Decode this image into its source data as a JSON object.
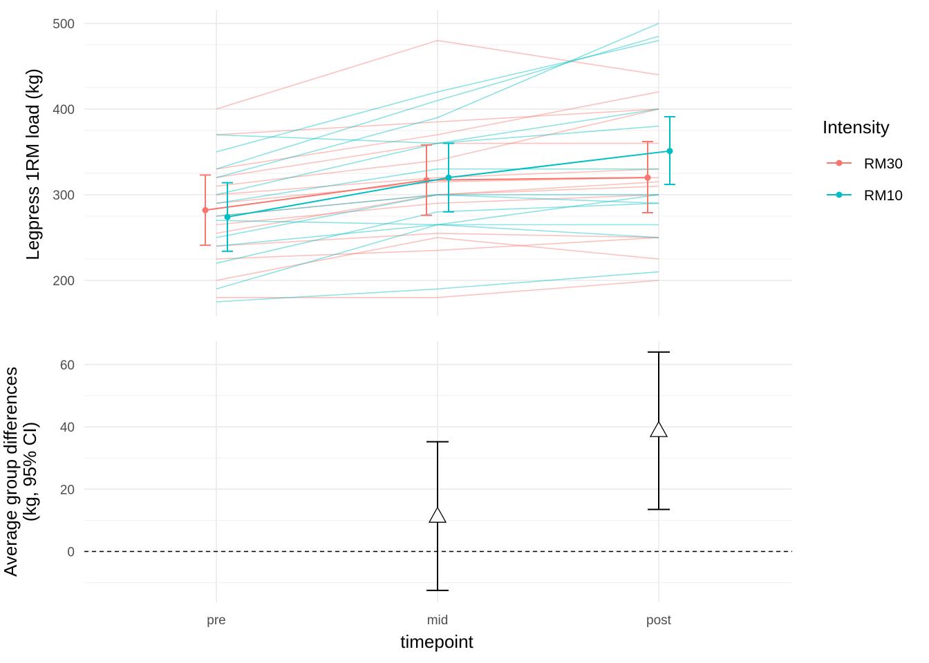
{
  "chart_data": [
    {
      "type": "line",
      "panel": "top",
      "title": "",
      "xlabel": "",
      "ylabel": "Legpress 1RM load (kg)",
      "categories": [
        "pre",
        "mid",
        "post"
      ],
      "ylim": [
        160,
        510
      ],
      "yticks": [
        200,
        300,
        400,
        500
      ],
      "grid": true,
      "legend": {
        "title": "Intensity",
        "placement": "right",
        "entries": [
          {
            "name": "RM30",
            "color": "#F8766D"
          },
          {
            "name": "RM10",
            "color": "#00BFC4"
          }
        ]
      },
      "individual_lines": [
        {
          "group": "RM30",
          "values": [
            400,
            480,
            440
          ]
        },
        {
          "group": "RM30",
          "values": [
            370,
            385,
            400
          ]
        },
        {
          "group": "RM30",
          "values": [
            330,
            370,
            420
          ]
        },
        {
          "group": "RM30",
          "values": [
            320,
            360,
            360
          ]
        },
        {
          "group": "RM30",
          "values": [
            310,
            340,
            400
          ]
        },
        {
          "group": "RM30",
          "values": [
            300,
            320,
            330
          ]
        },
        {
          "group": "RM30",
          "values": [
            290,
            315,
            320
          ]
        },
        {
          "group": "RM30",
          "values": [
            275,
            300,
            315
          ]
        },
        {
          "group": "RM30",
          "values": [
            265,
            290,
            300
          ]
        },
        {
          "group": "RM30",
          "values": [
            255,
            300,
            310
          ]
        },
        {
          "group": "RM30",
          "values": [
            240,
            255,
            250
          ]
        },
        {
          "group": "RM30",
          "values": [
            225,
            235,
            250
          ]
        },
        {
          "group": "RM30",
          "values": [
            200,
            250,
            225
          ]
        },
        {
          "group": "RM30",
          "values": [
            180,
            180,
            200
          ]
        },
        {
          "group": "RM10",
          "values": [
            370,
            360,
            400
          ]
        },
        {
          "group": "RM10",
          "values": [
            350,
            420,
            480
          ]
        },
        {
          "group": "RM10",
          "values": [
            330,
            410,
            485
          ]
        },
        {
          "group": "RM10",
          "values": [
            320,
            390,
            500
          ]
        },
        {
          "group": "RM10",
          "values": [
            300,
            360,
            380
          ]
        },
        {
          "group": "RM10",
          "values": [
            290,
            330,
            330
          ]
        },
        {
          "group": "RM10",
          "values": [
            275,
            300,
            300
          ]
        },
        {
          "group": "RM10",
          "values": [
            270,
            265,
            265
          ]
        },
        {
          "group": "RM10",
          "values": [
            250,
            300,
            290
          ]
        },
        {
          "group": "RM10",
          "values": [
            240,
            265,
            250
          ]
        },
        {
          "group": "RM10",
          "values": [
            220,
            280,
            290
          ]
        },
        {
          "group": "RM10",
          "values": [
            190,
            265,
            300
          ]
        },
        {
          "group": "RM10",
          "values": [
            175,
            190,
            210
          ]
        }
      ],
      "series": [
        {
          "name": "RM30",
          "values": [
            282,
            317,
            320
          ],
          "ci_lower": [
            241,
            276,
            279
          ],
          "ci_upper": [
            323,
            358,
            362
          ]
        },
        {
          "name": "RM10",
          "values": [
            274,
            320,
            351
          ],
          "ci_lower": [
            234,
            280,
            312
          ],
          "ci_upper": [
            314,
            360,
            391
          ]
        }
      ]
    },
    {
      "type": "scatter",
      "panel": "bottom",
      "title": "",
      "xlabel": "timepoint",
      "ylabel": "Average group differences\n(kg, 95% CI)",
      "categories": [
        "pre",
        "mid",
        "post"
      ],
      "ylim": [
        -16,
        68
      ],
      "yticks": [
        0,
        20,
        40,
        60
      ],
      "grid": true,
      "reference_line": 0,
      "marker": "open-triangle",
      "points": [
        {
          "x": "mid",
          "value": 11.5,
          "ci_lower": -12.5,
          "ci_upper": 35.2
        },
        {
          "x": "post",
          "value": 39.0,
          "ci_lower": 13.5,
          "ci_upper": 64.0
        }
      ]
    }
  ]
}
